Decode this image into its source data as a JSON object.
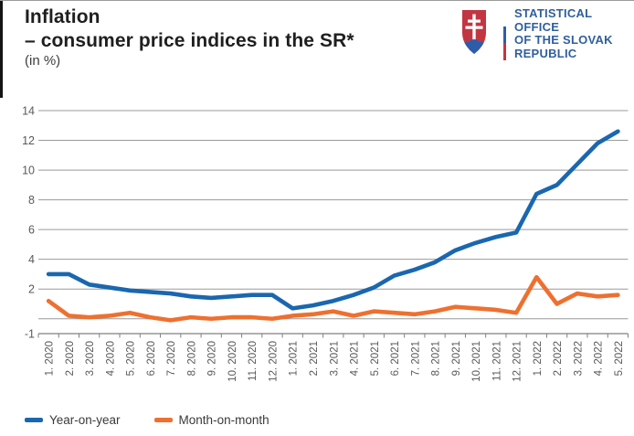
{
  "header": {
    "title_line1": "Inflation",
    "title_line2": "– consumer price indices in the SR*",
    "subtitle": "(in %)"
  },
  "logo": {
    "lines": [
      "STATISTICAL",
      "OFFICE",
      "OF THE SLOVAK",
      "REPUBLIC"
    ],
    "text_color": "#2f5f9c",
    "shield_red": "#c23641",
    "shield_blue": "#2d5da8",
    "stripe_colors": [
      "#ffffff",
      "#2d5da8",
      "#c23641"
    ]
  },
  "legend": [
    {
      "label": "Year-on-year",
      "color": "#1a67af"
    },
    {
      "label": "Month-on-month",
      "color": "#ee7030"
    }
  ],
  "chart_data": {
    "type": "line",
    "title": "Inflation – consumer price indices in the SR* (in %)",
    "xlabel": "",
    "ylabel": "%",
    "ylim": [
      -1,
      14
    ],
    "yticks_labeled": [
      14,
      12,
      10,
      8,
      6,
      4,
      2,
      -1
    ],
    "gridlines": [
      0,
      2,
      4,
      6,
      8,
      10,
      12,
      14
    ],
    "grid": "horizontal",
    "legend_position": "bottom-left",
    "categories": [
      "1. 2020",
      "2. 2020",
      "3. 2020",
      "4. 2020",
      "5. 2020",
      "6. 2020",
      "7. 2020",
      "8. 2020",
      "9. 2020",
      "10. 2020",
      "11. 2020",
      "12. 2020",
      "1. 2021",
      "2. 2021",
      "3. 2021",
      "4. 2021",
      "5. 2021",
      "6. 2021",
      "7. 2021",
      "8. 2021",
      "9. 2021",
      "10. 2021",
      "11. 2021",
      "12. 2021",
      "1. 2022",
      "2. 2022",
      "3. 2022",
      "4. 2022",
      "5. 2022"
    ],
    "series": [
      {
        "name": "Year-on-year",
        "color": "#1a67af",
        "values": [
          3.0,
          3.0,
          2.3,
          2.1,
          1.9,
          1.8,
          1.7,
          1.5,
          1.4,
          1.5,
          1.6,
          1.6,
          0.7,
          0.9,
          1.2,
          1.6,
          2.1,
          2.9,
          3.3,
          3.8,
          4.6,
          5.1,
          5.5,
          5.8,
          8.4,
          9.0,
          10.4,
          11.8,
          12.6
        ]
      },
      {
        "name": "Month-on-month",
        "color": "#ee7030",
        "values": [
          1.2,
          0.2,
          0.1,
          0.2,
          0.4,
          0.1,
          -0.1,
          0.1,
          0.0,
          0.1,
          0.1,
          0.0,
          0.2,
          0.3,
          0.5,
          0.2,
          0.5,
          0.4,
          0.3,
          0.5,
          0.8,
          0.7,
          0.6,
          0.4,
          2.8,
          1.0,
          1.7,
          1.5,
          1.6
        ]
      }
    ],
    "axis_colors": {
      "grid": "#9a9a9a",
      "axis": "#808080",
      "tick_labels": "#595959"
    }
  }
}
